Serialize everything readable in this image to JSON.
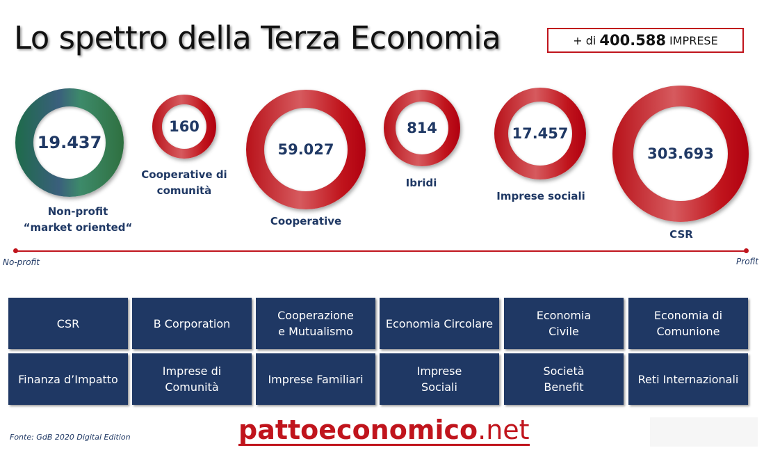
{
  "title": "Lo spettro della Terza Economia",
  "badge": {
    "prefix": "+ di",
    "number": "400.588",
    "suffix": "IMPRESE"
  },
  "circles": [
    {
      "value": "19.437",
      "label_line1": "Non-profit",
      "label_line2": "“market oriented“",
      "color": "green"
    },
    {
      "value": "160",
      "label_line1": "Cooperative di",
      "label_line2": "comunità",
      "color": "red"
    },
    {
      "value": "59.027",
      "label_line1": "Cooperative",
      "color": "red"
    },
    {
      "value": "814",
      "label_line1": "Ibridi",
      "color": "red"
    },
    {
      "value": "17.457",
      "label_line1": "Imprese sociali",
      "color": "red"
    },
    {
      "value": "303.693",
      "label_line1": "CSR",
      "color": "red"
    }
  ],
  "axis": {
    "left": "No-profit",
    "right": "Profit",
    "color": "#c0141c"
  },
  "boxes": [
    [
      "CSR"
    ],
    [
      "B Corporation"
    ],
    [
      "Cooperazione",
      "e Mutualismo"
    ],
    [
      "Economia Circolare"
    ],
    [
      "Economia",
      "Civile"
    ],
    [
      "Economia di",
      "Comunione"
    ],
    [
      "Finanza d’Impatto"
    ],
    [
      "Imprese di",
      "Comunità"
    ],
    [
      "Imprese Familiari"
    ],
    [
      "Imprese",
      "Sociali"
    ],
    [
      "Società",
      "Benefit"
    ],
    [
      "Reti Internazionali"
    ]
  ],
  "footer": {
    "source": "Fonte: GdB 2020 Digital Edition",
    "logo_main": "pattoeconomico",
    "logo_tld": ".net"
  },
  "colors": {
    "navy": "#1f3864",
    "red": "#c0141c"
  }
}
